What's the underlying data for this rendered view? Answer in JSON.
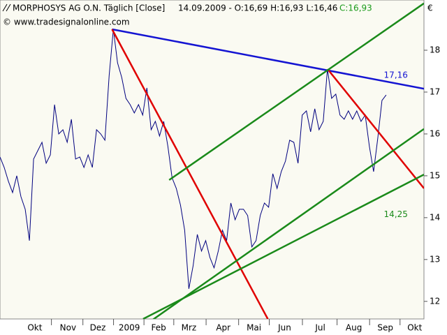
{
  "chart_data": {
    "type": "line",
    "title": "MORPHOSYS AG O.N. Täglich [Close]",
    "subtitle": "14.09.2009 - O:16,69 H:16,93 L:16,46",
    "close_label": "C:16,93",
    "close_color": "#1a9a1a",
    "source": "© www.tradesignalonline.com",
    "y_unit": "€",
    "series": [
      {
        "color": "#00007f",
        "values": [
          15.45,
          15.2,
          14.87,
          14.6,
          15.0,
          14.5,
          14.2,
          13.45,
          15.4,
          15.6,
          15.8,
          15.3,
          15.5,
          16.7,
          16.0,
          16.1,
          15.8,
          16.35,
          15.4,
          15.45,
          15.2,
          15.5,
          15.2,
          16.1,
          16.0,
          15.85,
          17.4,
          18.5,
          17.7,
          17.35,
          16.85,
          16.7,
          16.5,
          16.7,
          16.45,
          17.1,
          16.1,
          16.3,
          15.95,
          16.3,
          15.7,
          14.95,
          14.7,
          14.3,
          13.7,
          12.3,
          12.85,
          13.6,
          13.2,
          13.45,
          13.05,
          12.8,
          13.2,
          13.7,
          13.45,
          14.35,
          13.95,
          14.2,
          14.2,
          14.05,
          13.3,
          13.45,
          14.05,
          14.35,
          14.25,
          15.05,
          14.7,
          15.1,
          15.35,
          15.85,
          15.8,
          15.3,
          16.45,
          16.55,
          16.05,
          16.6,
          16.1,
          16.3,
          17.55,
          16.85,
          16.95,
          16.45,
          16.35,
          16.55,
          16.35,
          16.55,
          16.3,
          16.45,
          15.7,
          15.1,
          15.9,
          16.8,
          16.93
        ]
      }
    ],
    "trendlines": [
      {
        "color": "#1414d2",
        "points": [
          [
            26.7,
            18.5
          ],
          [
            101,
            17.08
          ]
        ]
      },
      {
        "color": "#e00000",
        "points": [
          [
            26.7,
            18.5
          ],
          [
            63.8,
            11.58
          ]
        ]
      },
      {
        "color": "#e00000",
        "points": [
          [
            78.2,
            17.53
          ],
          [
            101,
            14.7
          ]
        ]
      },
      {
        "color": "#1a8a1a",
        "points": [
          [
            40.3,
            14.9
          ],
          [
            101,
            19.12
          ]
        ]
      },
      {
        "color": "#1a8a1a",
        "points": [
          [
            34.1,
            11.4
          ],
          [
            101,
            16.12
          ]
        ]
      },
      {
        "color": "#1a8a1a",
        "points": [
          [
            34.1,
            11.58
          ],
          [
            101,
            15.03
          ]
        ]
      }
    ],
    "annotations": [
      {
        "text": "17,16",
        "x": 94.3,
        "y": 17.4,
        "color": "#1414d2"
      },
      {
        "text": "14,25",
        "x": 94.3,
        "y": 14.07,
        "color": "#1a8a1a"
      }
    ],
    "xlim": [
      0,
      101
    ],
    "ylim": [
      11.58,
      19.2
    ],
    "yticks": [
      12,
      13,
      14,
      15,
      16,
      17,
      18
    ],
    "xticks": [
      {
        "value": 8.3,
        "label": "Okt"
      },
      {
        "value": 16.2,
        "label": "Nov"
      },
      {
        "value": 23.3,
        "label": "Dez"
      },
      {
        "value": 30.8,
        "label": "2009"
      },
      {
        "value": 37.8,
        "label": "Feb"
      },
      {
        "value": 45,
        "label": "Mrz"
      },
      {
        "value": 53.2,
        "label": "Apr"
      },
      {
        "value": 60.5,
        "label": "Mai"
      },
      {
        "value": 67.8,
        "label": "Jun"
      },
      {
        "value": 76.3,
        "label": "Jul"
      },
      {
        "value": 84.3,
        "label": "Aug"
      },
      {
        "value": 91.8,
        "label": "Sep"
      },
      {
        "value": 98.8,
        "label": "Okt"
      }
    ]
  }
}
